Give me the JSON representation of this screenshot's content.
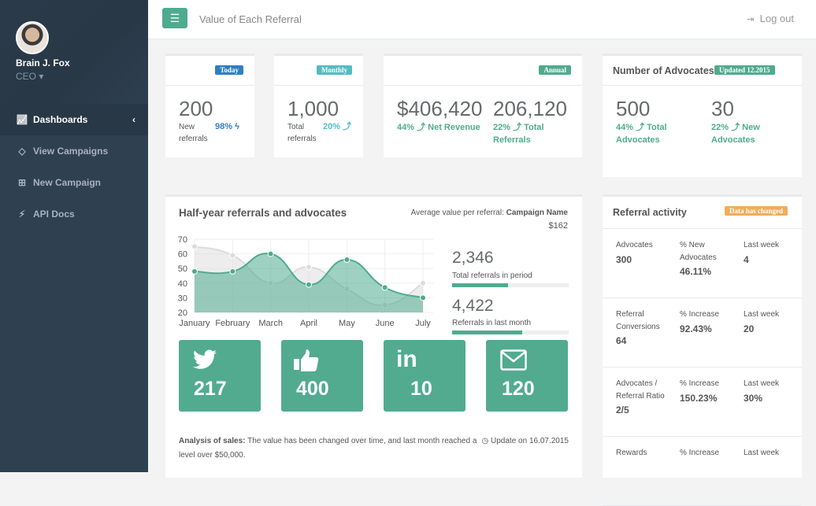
{
  "sidebar": {
    "user_name": "Brain J. Fox",
    "user_role": "CEO",
    "items": [
      {
        "label": "Dashboards",
        "icon": "line-chart-icon",
        "active": true
      },
      {
        "label": "View Campaigns",
        "icon": "diamond-icon"
      },
      {
        "label": "New Campaign",
        "icon": "plus-square-icon"
      },
      {
        "label": "API Docs",
        "icon": "plug-icon"
      }
    ]
  },
  "header": {
    "title": "Value of Each Referral",
    "logout": "Log out"
  },
  "stats": {
    "today": {
      "badge": "Today",
      "value": "200",
      "label1": "New",
      "label2": "referrals",
      "pct": "98% ϟ",
      "color": "#2f7ec4"
    },
    "monthly": {
      "badge": "Monthly",
      "value": "1,000",
      "label1": "Total",
      "label2": "referrals",
      "pct": "20% ⤴",
      "color": "#52bcc4"
    },
    "annual": {
      "badge": "Annual",
      "v1": "$406,420",
      "p1": "44% ⤴ Net Revenue",
      "v2": "206,120",
      "p2a": "22% ⤴ Total",
      "p2b": "Referrals",
      "color": "#4fab8e"
    },
    "advocates": {
      "title": "Number of Advocates",
      "badge": "Updated 12.2015",
      "v1": "500",
      "p1a": "44% ⤴ Total",
      "p1b": "Advocates",
      "v2": "30",
      "p2a": "22% ⤴ New",
      "p2b": "Advocates"
    }
  },
  "main": {
    "title": "Half-year referrals and advocates",
    "avg_label": "Average value per referral:",
    "avg_campaign": "Campaign Name",
    "avg_value": "$162",
    "total_value": "2,346",
    "total_label": "Total referrals in period",
    "total_progress": 48,
    "last_value": "4,422",
    "last_label": "Referrals in last month",
    "last_progress": 60,
    "social": [
      {
        "icon": "twitter-icon",
        "value": "217"
      },
      {
        "icon": "thumbs-up-icon",
        "value": "400"
      },
      {
        "icon": "linkedin-icon",
        "value": "10"
      },
      {
        "icon": "envelope-icon",
        "value": "120"
      }
    ],
    "analysis_bold": "Analysis of sales:",
    "analysis_text": " The value has been changed over time, and last month reached a level over $50,000.",
    "update": "Update on 16.07.2015"
  },
  "chart_data": {
    "type": "area",
    "categories": [
      "January",
      "February",
      "March",
      "April",
      "May",
      "June",
      "July"
    ],
    "yticks": [
      20,
      30,
      40,
      50,
      60,
      70
    ],
    "ylim": [
      20,
      70
    ],
    "grid": true,
    "series": [
      {
        "values": [
          65,
          59,
          40,
          51,
          36,
          25,
          40
        ],
        "color": "#dcdcdc"
      },
      {
        "values": [
          48,
          48,
          60,
          39,
          56,
          37,
          30
        ],
        "color": "#4fab8e"
      }
    ]
  },
  "activity": {
    "title": "Referral activity",
    "badge": "Data has changed",
    "rows": [
      [
        {
          "l": "Advocates",
          "v": "300"
        },
        {
          "l": "% New Advocates",
          "v": "46.11%"
        },
        {
          "l": "Last week",
          "v": "4"
        }
      ],
      [
        {
          "l": "Referral Conversions",
          "v": "64"
        },
        {
          "l": "% Increase",
          "v": "92.43%"
        },
        {
          "l": "Last week",
          "v": "20"
        }
      ],
      [
        {
          "l": "Advocates / Referral Ratio",
          "v": "2/5"
        },
        {
          "l": "% Increase",
          "v": "150.23%"
        },
        {
          "l": "Last week",
          "v": "30%"
        }
      ],
      [
        {
          "l": "Rewards",
          "v": ""
        },
        {
          "l": "% Increase",
          "v": ""
        },
        {
          "l": "Last week",
          "v": ""
        }
      ]
    ]
  }
}
